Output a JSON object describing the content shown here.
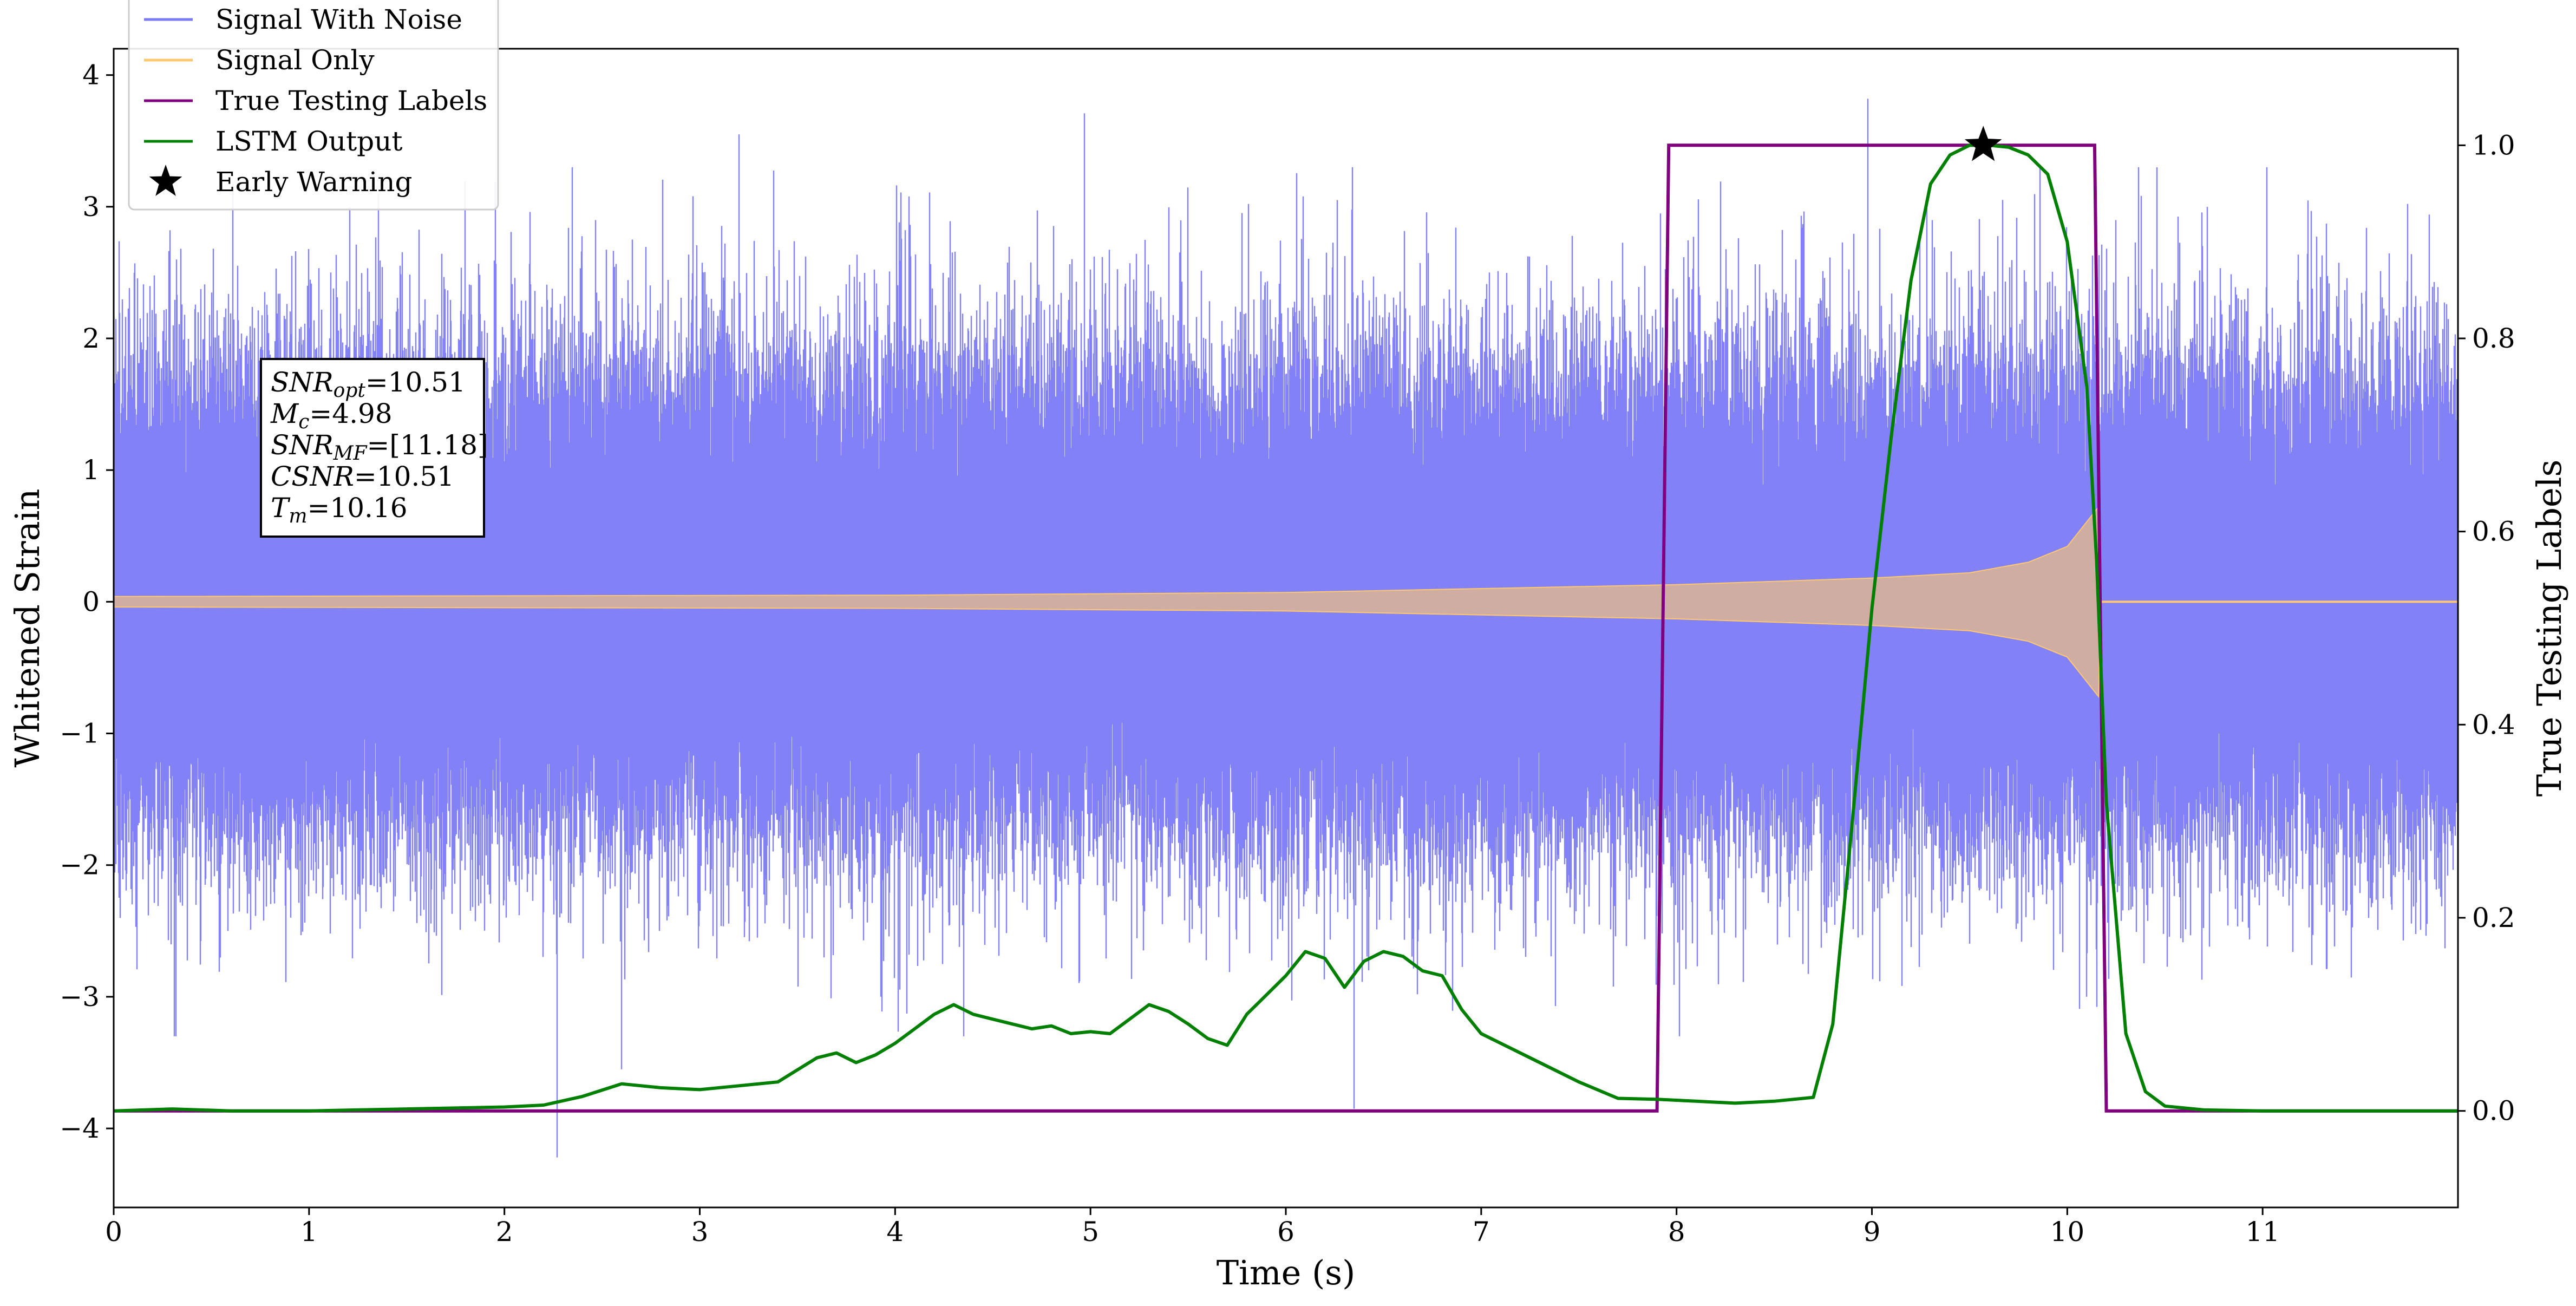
{
  "chart_data": {
    "type": "line",
    "xlabel": "Time (s)",
    "ylabel_left": "Whitened Strain",
    "ylabel_right": "True Testing Labels",
    "xlim": [
      0,
      12
    ],
    "ylim_left": [
      -4.6,
      4.2
    ],
    "ylim_right": [
      -0.1,
      1.1
    ],
    "x_ticks": [
      0,
      1,
      2,
      3,
      4,
      5,
      6,
      7,
      8,
      9,
      10,
      11
    ],
    "y_ticks_left": [
      -4,
      -3,
      -2,
      -1,
      0,
      1,
      2,
      3,
      4
    ],
    "y_ticks_right": [
      0.0,
      0.2,
      0.4,
      0.6,
      0.8,
      1.0
    ],
    "grid": false,
    "legend_position": "top-left",
    "legend": [
      {
        "label": "Signal With Noise",
        "color": "#7b7bf5",
        "marker": "line"
      },
      {
        "label": "Signal Only",
        "color": "#ffc870",
        "marker": "line"
      },
      {
        "label": "True Testing Labels",
        "color": "#800080",
        "marker": "line"
      },
      {
        "label": "LSTM Output",
        "color": "#008000",
        "marker": "line"
      },
      {
        "label": "Early Warning",
        "color": "#000000",
        "marker": "star"
      }
    ],
    "series": [
      {
        "name": "Signal With Noise",
        "axis": "left",
        "color": "#7b7bf5",
        "noise_std": 0.85,
        "spikes": [
          {
            "x": 2.27,
            "y": -4.22
          },
          {
            "x": 6.35,
            "y": -3.85
          },
          {
            "x": 8.98,
            "y": 3.82
          },
          {
            "x": 4.97,
            "y": 3.71
          },
          {
            "x": 2.6,
            "y": -3.55
          },
          {
            "x": 10.1,
            "y": -3.0
          },
          {
            "x": 3.2,
            "y": 3.55
          }
        ]
      },
      {
        "name": "Signal Only",
        "axis": "left",
        "color": "#ffc870",
        "envelope": [
          {
            "x": 0.0,
            "y": 0.04
          },
          {
            "x": 4.0,
            "y": 0.05
          },
          {
            "x": 6.0,
            "y": 0.07
          },
          {
            "x": 8.0,
            "y": 0.13
          },
          {
            "x": 9.0,
            "y": 0.18
          },
          {
            "x": 9.5,
            "y": 0.22
          },
          {
            "x": 9.8,
            "y": 0.3
          },
          {
            "x": 10.0,
            "y": 0.42
          },
          {
            "x": 10.16,
            "y": 0.72
          },
          {
            "x": 10.17,
            "y": 0.0
          },
          {
            "x": 12.0,
            "y": 0.0
          }
        ]
      },
      {
        "name": "True Testing Labels",
        "axis": "right",
        "color": "#800080",
        "x": [
          0,
          7.9,
          7.96,
          10.14,
          10.2,
          12
        ],
        "y": [
          0,
          0,
          1,
          1,
          0,
          0
        ]
      },
      {
        "name": "LSTM Output",
        "axis": "right",
        "color": "#008000",
        "x": [
          0.0,
          0.3,
          0.6,
          1.0,
          1.5,
          2.0,
          2.2,
          2.4,
          2.6,
          2.8,
          3.0,
          3.2,
          3.4,
          3.6,
          3.7,
          3.8,
          3.9,
          4.0,
          4.1,
          4.2,
          4.3,
          4.4,
          4.5,
          4.6,
          4.7,
          4.8,
          4.9,
          5.0,
          5.1,
          5.2,
          5.3,
          5.4,
          5.5,
          5.6,
          5.7,
          5.8,
          5.9,
          6.0,
          6.1,
          6.2,
          6.3,
          6.4,
          6.5,
          6.6,
          6.7,
          6.8,
          6.9,
          7.0,
          7.1,
          7.3,
          7.5,
          7.7,
          7.9,
          8.1,
          8.3,
          8.5,
          8.7,
          8.8,
          8.9,
          9.0,
          9.1,
          9.2,
          9.3,
          9.4,
          9.5,
          9.6,
          9.7,
          9.8,
          9.9,
          10.0,
          10.1,
          10.15,
          10.2,
          10.3,
          10.4,
          10.5,
          10.7,
          11.0,
          11.5,
          12.0
        ],
        "y": [
          0.0,
          0.002,
          0.0,
          0.0,
          0.002,
          0.004,
          0.006,
          0.015,
          0.028,
          0.024,
          0.022,
          0.026,
          0.03,
          0.055,
          0.06,
          0.05,
          0.058,
          0.07,
          0.085,
          0.1,
          0.11,
          0.1,
          0.095,
          0.09,
          0.085,
          0.088,
          0.08,
          0.082,
          0.08,
          0.095,
          0.11,
          0.103,
          0.09,
          0.075,
          0.068,
          0.1,
          0.12,
          0.14,
          0.165,
          0.158,
          0.128,
          0.155,
          0.165,
          0.16,
          0.145,
          0.14,
          0.105,
          0.08,
          0.07,
          0.05,
          0.03,
          0.013,
          0.012,
          0.01,
          0.008,
          0.01,
          0.014,
          0.09,
          0.3,
          0.52,
          0.7,
          0.86,
          0.96,
          0.99,
          1.0,
          1.0,
          0.998,
          0.99,
          0.97,
          0.9,
          0.75,
          0.57,
          0.32,
          0.08,
          0.02,
          0.005,
          0.001,
          0.0,
          0.0,
          0.0
        ]
      }
    ],
    "markers": [
      {
        "name": "Early Warning",
        "axis": "right",
        "x": 9.57,
        "y": 1.0,
        "color": "#000000",
        "shape": "star"
      }
    ],
    "annotation_box": {
      "lines": [
        {
          "var": "SNR",
          "sub": "opt",
          "value": "=10.51"
        },
        {
          "var": "M",
          "sub": "c",
          "value": "=4.98"
        },
        {
          "var": "SNR",
          "sub": "MF",
          "value": "=[11.18]"
        },
        {
          "var": "CSNR",
          "sub": "",
          "value": "=10.51"
        },
        {
          "var": "T",
          "sub": "m",
          "value": "=10.16"
        }
      ]
    }
  }
}
